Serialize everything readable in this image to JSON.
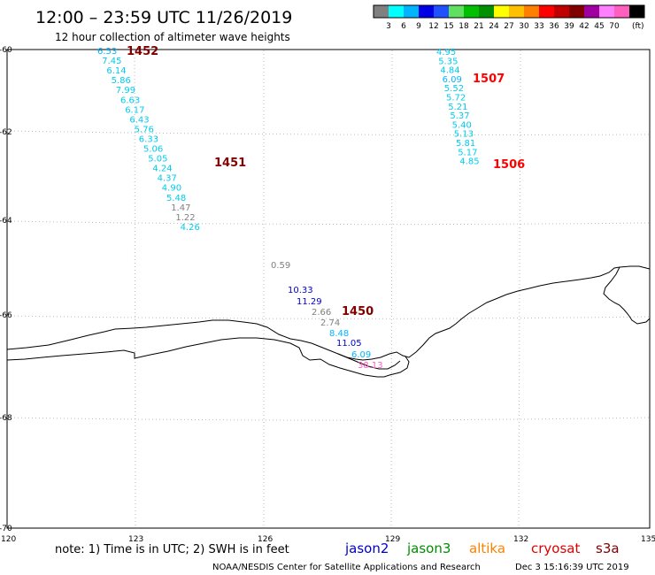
{
  "header": {
    "title": "12:00 – 23:59 UTC 11/26/2019",
    "subtitle": "12 hour collection of altimeter wave heights"
  },
  "colorbar": {
    "colors": [
      "#808080",
      "#00ffff",
      "#00b4ff",
      "#0000e6",
      "#2050ff",
      "#60e060",
      "#00c000",
      "#009000",
      "#ffff00",
      "#ffc000",
      "#ff8000",
      "#ff0000",
      "#c00000",
      "#800000",
      "#a000a0",
      "#ff80ff",
      "#ff60c0",
      "#000000"
    ],
    "labels": [
      "3",
      "6",
      "9",
      "12",
      "15",
      "18",
      "21",
      "24",
      "27",
      "30",
      "33",
      "36",
      "39",
      "42",
      "45",
      "70"
    ],
    "unit": "(ft)"
  },
  "axes": {
    "lat_labels": [
      "-60",
      "-62",
      "-64",
      "-66",
      "-68",
      "-70"
    ],
    "lon_labels": [
      "120",
      "123",
      "126",
      "129",
      "132",
      "135"
    ]
  },
  "tracks": [
    {
      "time": "1452",
      "time_color": "#800000",
      "points": [
        {
          "v": "6.53",
          "c": "#00b4ff"
        },
        {
          "v": "7.45",
          "c": "#00ccee"
        },
        {
          "v": "6.14",
          "c": "#00ccee"
        },
        {
          "v": "5.86",
          "c": "#00ccee"
        },
        {
          "v": "7.99",
          "c": "#00ccee"
        },
        {
          "v": "6.63",
          "c": "#00ccee"
        },
        {
          "v": "6.17",
          "c": "#00ccee"
        },
        {
          "v": "6.43",
          "c": "#00ccee"
        },
        {
          "v": "5.76",
          "c": "#00ccee"
        },
        {
          "v": "6.33",
          "c": "#00ccee"
        },
        {
          "v": "5.06",
          "c": "#00ccee"
        },
        {
          "v": "5.05",
          "c": "#00ccee"
        },
        {
          "v": "4.24",
          "c": "#00ccee"
        },
        {
          "v": "4.37",
          "c": "#00ccee"
        },
        {
          "v": "4.90",
          "c": "#00ccee"
        },
        {
          "v": "5.48",
          "c": "#00ccee"
        },
        {
          "v": "1.47",
          "c": "#808080"
        },
        {
          "v": "1.22",
          "c": "#808080"
        },
        {
          "v": "4.26",
          "c": "#00ccee"
        }
      ]
    },
    {
      "time": "1451",
      "time_color": "#800000",
      "points": []
    },
    {
      "time": "1507",
      "time_color": "#ff0000",
      "points": [
        {
          "v": "4.95",
          "c": "#00ccee"
        },
        {
          "v": "5.35",
          "c": "#00ccee"
        },
        {
          "v": "4.84",
          "c": "#00ccee"
        },
        {
          "v": "6.09",
          "c": "#00b4ff"
        },
        {
          "v": "5.52",
          "c": "#00ccee"
        },
        {
          "v": "5.72",
          "c": "#00ccee"
        },
        {
          "v": "5.21",
          "c": "#00ccee"
        },
        {
          "v": "5.37",
          "c": "#00ccee"
        },
        {
          "v": "5.40",
          "c": "#00ccee"
        },
        {
          "v": "5.13",
          "c": "#00ccee"
        },
        {
          "v": "5.81",
          "c": "#00ccee"
        },
        {
          "v": "5.17",
          "c": "#00ccee"
        },
        {
          "v": "4.85",
          "c": "#00ccee"
        }
      ]
    },
    {
      "time": "1506",
      "time_color": "#ff0000",
      "points": []
    },
    {
      "time": "1450",
      "time_color": "#800000",
      "points": [
        {
          "v": "0.59",
          "c": "#808080"
        },
        {
          "v": "10.33",
          "c": "#0000c8"
        },
        {
          "v": "11.29",
          "c": "#0000c8"
        },
        {
          "v": "2.66",
          "c": "#808080"
        },
        {
          "v": "2.74",
          "c": "#808080"
        },
        {
          "v": "8.48",
          "c": "#00b4ff"
        },
        {
          "v": "11.05",
          "c": "#0000c8"
        },
        {
          "v": "6.09",
          "c": "#00b4ff"
        },
        {
          "v": "38.13",
          "c": "#ff60c0"
        }
      ]
    }
  ],
  "footer": {
    "note": "note: 1) Time is in UTC; 2) SWH is in feet",
    "credit": "NOAA/NESDIS Center for Satellite Applications and Research",
    "timestamp": "Dec  3 15:16:39 UTC 2019"
  },
  "legend": [
    {
      "name": "jason2",
      "color": "#0000c8"
    },
    {
      "name": "jason3",
      "color": "#009000"
    },
    {
      "name": "altika",
      "color": "#ff8000"
    },
    {
      "name": "cryosat",
      "color": "#e00000"
    },
    {
      "name": "s3a",
      "color": "#800000"
    }
  ]
}
